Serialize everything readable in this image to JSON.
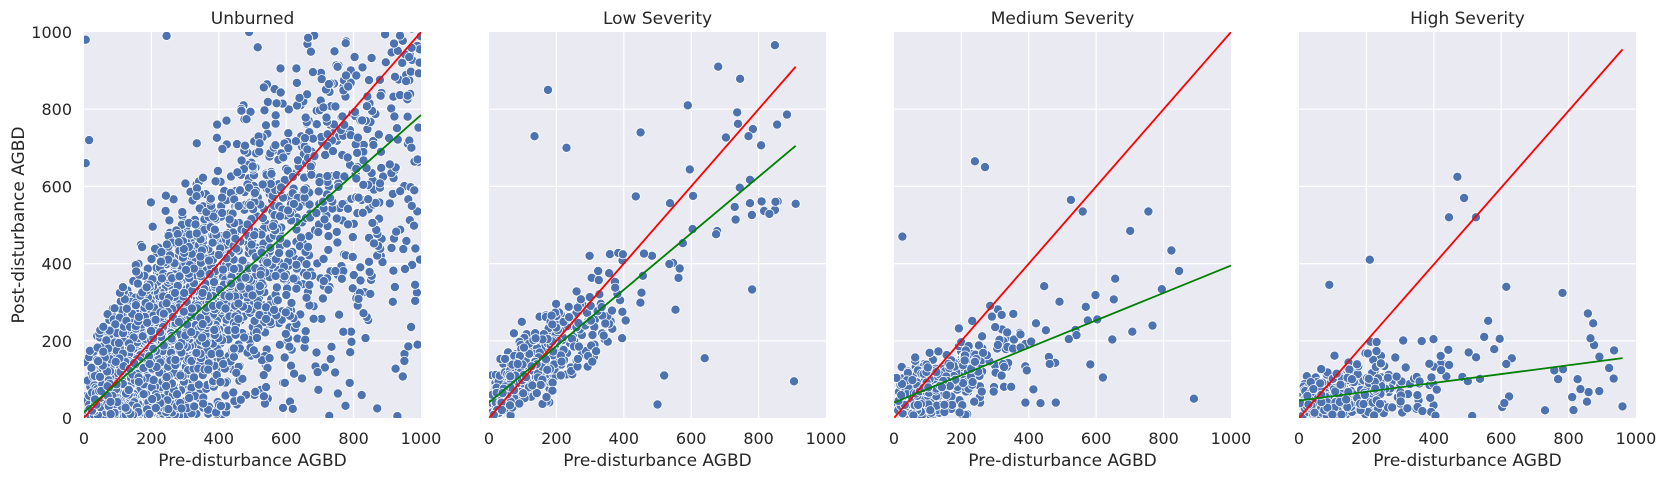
{
  "chart_data": {
    "type": "scatter",
    "ylabel": "Post-disturbance AGBD",
    "xlabel": "Pre-disturbance AGBD",
    "xlim": [
      0,
      1000
    ],
    "ylim": [
      0,
      1000
    ],
    "xticks": [
      0,
      200,
      400,
      600,
      800,
      1000
    ],
    "yticks": [
      0,
      200,
      400,
      600,
      800,
      1000
    ],
    "grid": true,
    "colors": {
      "points": "#4c72b0",
      "reference_line": "#ff0000",
      "fit_line": "#008000",
      "panel_background": "#eaeaf2"
    },
    "panels": [
      {
        "title": "Unburned",
        "reference_line": [
          [
            0,
            0
          ],
          [
            1000,
            1000
          ]
        ],
        "fit_line": [
          [
            0,
            15
          ],
          [
            1000,
            785
          ]
        ],
        "approx_points": 9000,
        "x_range": [
          0,
          1000
        ],
        "points_sample": [
          [
            5,
            980
          ],
          [
            245,
            990
          ],
          [
            490,
            1000
          ],
          [
            665,
            985
          ],
          [
            920,
            970
          ],
          [
            880,
            835
          ],
          [
            990,
            670
          ],
          [
            980,
            590
          ],
          [
            930,
            5
          ],
          [
            870,
            25
          ],
          [
            990,
            190
          ],
          [
            15,
            720
          ],
          [
            5,
            660
          ]
        ]
      },
      {
        "title": "Low Severity",
        "reference_line": [
          [
            0,
            0
          ],
          [
            910,
            910
          ]
        ],
        "fit_line": [
          [
            0,
            40
          ],
          [
            910,
            705
          ]
        ],
        "approx_points": 1200,
        "x_range": [
          0,
          910
        ],
        "points_sample": [
          [
            680,
            910
          ],
          [
            175,
            850
          ],
          [
            590,
            810
          ],
          [
            855,
            760
          ],
          [
            770,
            730
          ],
          [
            135,
            730
          ],
          [
            230,
            700
          ],
          [
            450,
            740
          ],
          [
            910,
            555
          ],
          [
            850,
            560
          ],
          [
            905,
            95
          ],
          [
            640,
            155
          ],
          [
            520,
            110
          ],
          [
            500,
            35
          ]
        ]
      },
      {
        "title": "Medium Severity",
        "reference_line": [
          [
            0,
            0
          ],
          [
            1000,
            1000
          ]
        ],
        "fit_line": [
          [
            0,
            40
          ],
          [
            1000,
            395
          ]
        ],
        "approx_points": 900,
        "x_range": [
          0,
          900
        ],
        "points_sample": [
          [
            240,
            665
          ],
          [
            270,
            650
          ],
          [
            755,
            535
          ],
          [
            525,
            565
          ],
          [
            560,
            535
          ],
          [
            25,
            470
          ],
          [
            890,
            50
          ],
          [
            620,
            105
          ],
          [
            480,
            40
          ],
          [
            390,
            40
          ]
        ]
      },
      {
        "title": "High Severity",
        "reference_line": [
          [
            0,
            0
          ],
          [
            960,
            955
          ]
        ],
        "fit_line": [
          [
            0,
            45
          ],
          [
            960,
            155
          ]
        ],
        "approx_points": 1000,
        "x_range": [
          0,
          960
        ],
        "points_sample": [
          [
            470,
            625
          ],
          [
            490,
            570
          ],
          [
            445,
            520
          ],
          [
            525,
            520
          ],
          [
            210,
            410
          ],
          [
            615,
            340
          ],
          [
            90,
            345
          ],
          [
            960,
            30
          ],
          [
            730,
            20
          ],
          [
            835,
            75
          ],
          [
            935,
            175
          ],
          [
            615,
            140
          ]
        ]
      }
    ]
  }
}
